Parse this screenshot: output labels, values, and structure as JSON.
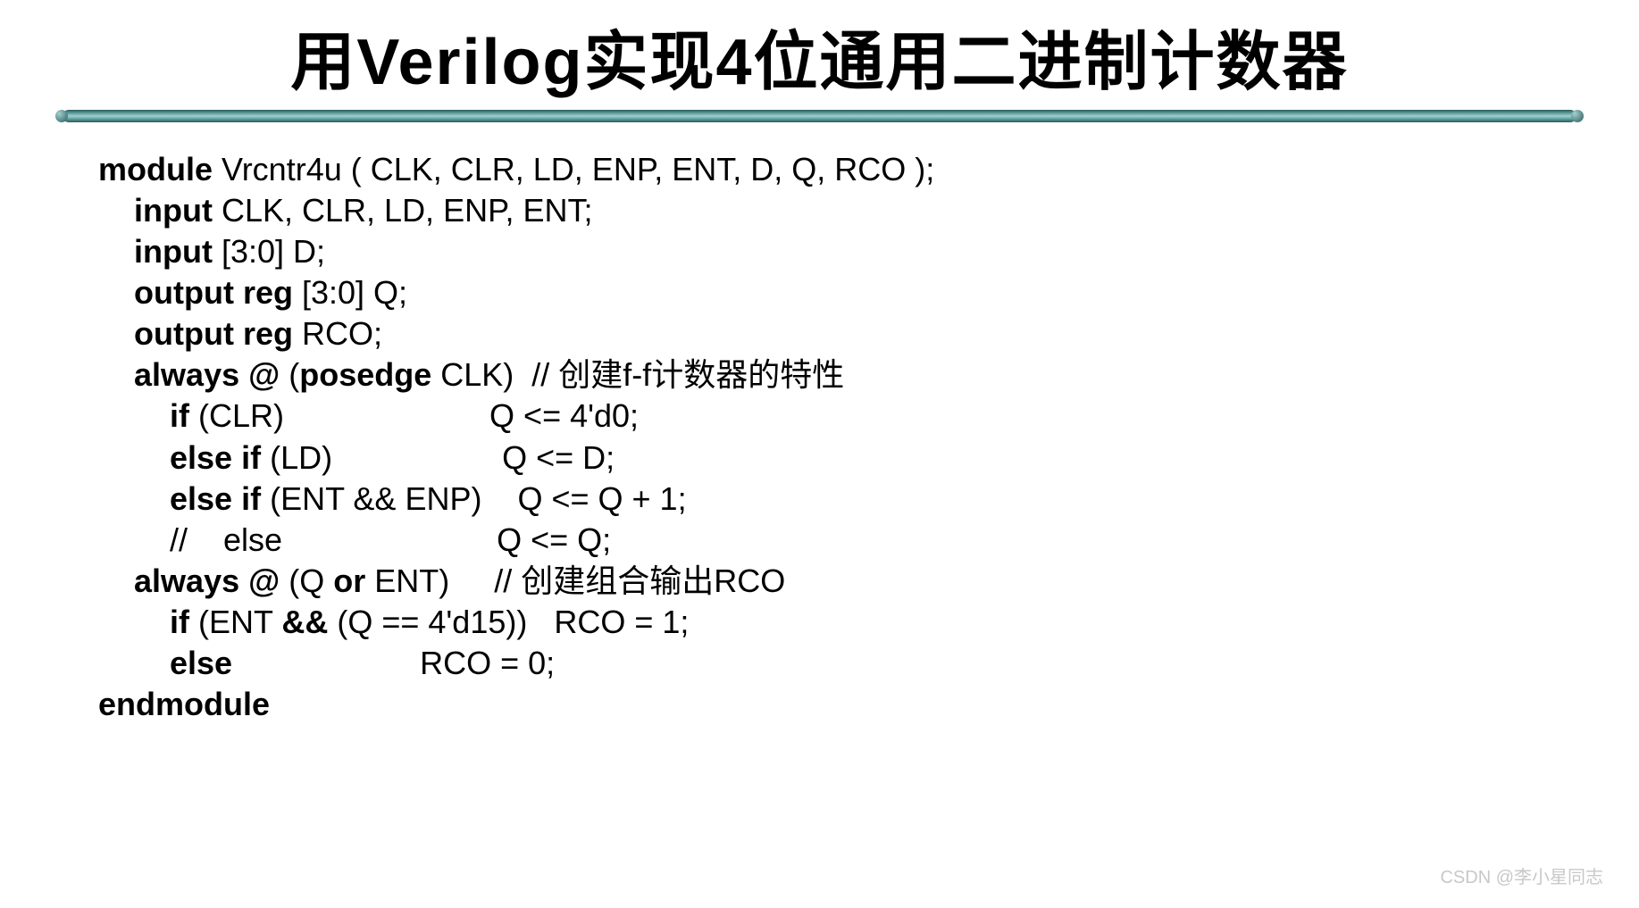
{
  "slide": {
    "title": "用Verilog实现4位通用二进制计数器",
    "title_fontsize": 72,
    "title_color": "#000000",
    "background_color": "#ffffff",
    "divider_colors": {
      "dark": "#2a5a5a",
      "mid": "#5a9a9a",
      "light": "#a0d0d0"
    },
    "code_fontsize": 36,
    "code_color": "#000000",
    "code_lines": [
      {
        "indent": 0,
        "segments": [
          {
            "t": "module ",
            "b": true
          },
          {
            "t": "Vrcntr4u ( CLK, CLR, LD, ENP, ENT, D, Q, RCO );",
            "b": false
          }
        ]
      },
      {
        "indent": 1,
        "segments": [
          {
            "t": "input ",
            "b": true
          },
          {
            "t": "CLK, CLR, LD, ENP, ENT;",
            "b": false
          }
        ]
      },
      {
        "indent": 1,
        "segments": [
          {
            "t": "input ",
            "b": true
          },
          {
            "t": "[3:0] D;",
            "b": false
          }
        ]
      },
      {
        "indent": 1,
        "segments": [
          {
            "t": "output reg ",
            "b": true
          },
          {
            "t": "[3:0] Q;",
            "b": false
          }
        ]
      },
      {
        "indent": 1,
        "segments": [
          {
            "t": "output reg ",
            "b": true
          },
          {
            "t": "RCO;",
            "b": false
          }
        ]
      },
      {
        "indent": 1,
        "segments": [
          {
            "t": "always @ ",
            "b": true
          },
          {
            "t": "(",
            "b": false
          },
          {
            "t": "posedge ",
            "b": true
          },
          {
            "t": "CLK)  // 创建f-f计数器的特性",
            "b": false
          }
        ]
      },
      {
        "indent": 2,
        "segments": [
          {
            "t": "if ",
            "b": true
          },
          {
            "t": "(CLR)                       Q <= 4'd0;",
            "b": false
          }
        ]
      },
      {
        "indent": 2,
        "segments": [
          {
            "t": "else if ",
            "b": true
          },
          {
            "t": "(LD)                   Q <= D;",
            "b": false
          }
        ]
      },
      {
        "indent": 2,
        "segments": [
          {
            "t": "else if ",
            "b": true
          },
          {
            "t": "(ENT && ENP)    Q <= Q + 1;",
            "b": false
          }
        ]
      },
      {
        "indent": 2,
        "segments": [
          {
            "t": "//    else                        Q <= Q;",
            "b": false
          }
        ]
      },
      {
        "indent": 1,
        "segments": [
          {
            "t": "always @ ",
            "b": true
          },
          {
            "t": "(Q ",
            "b": false
          },
          {
            "t": "or ",
            "b": true
          },
          {
            "t": "ENT)     // 创建组合输出RCO",
            "b": false
          }
        ]
      },
      {
        "indent": 2,
        "segments": [
          {
            "t": "if ",
            "b": true
          },
          {
            "t": "(ENT ",
            "b": false
          },
          {
            "t": "&& ",
            "b": true
          },
          {
            "t": "(Q == 4'd15))   RCO = 1;",
            "b": false
          }
        ]
      },
      {
        "indent": 2,
        "segments": [
          {
            "t": "else                     ",
            "b": true
          },
          {
            "t": "RCO = 0;",
            "b": false
          }
        ]
      },
      {
        "indent": 0,
        "segments": [
          {
            "t": "endmodule",
            "b": true
          }
        ]
      }
    ],
    "indent_unit": "    "
  },
  "watermark": {
    "text": "CSDN @李小星同志",
    "color": "#c8c8c8",
    "fontsize": 20
  }
}
